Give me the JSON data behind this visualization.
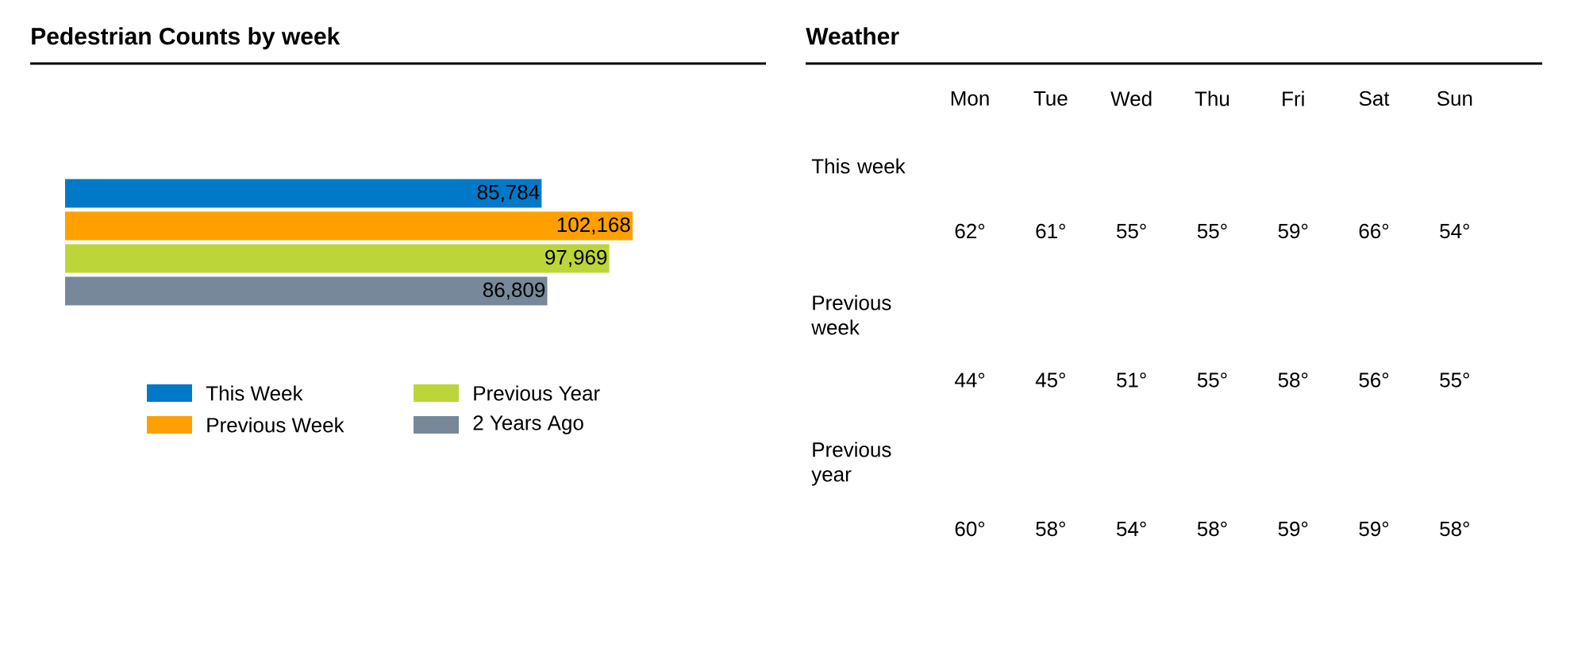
{
  "chart_data": [
    {
      "type": "bar",
      "title": "Pedestrian Counts by week",
      "orientation": "horizontal",
      "categories": [
        null
      ],
      "legend": "bottom",
      "series": [
        {
          "name": "This Week",
          "color": "#0079c8",
          "values": [
            85784
          ],
          "value_labels": [
            "85,784"
          ]
        },
        {
          "name": "Previous Week",
          "color": "#ffa000",
          "values": [
            102168
          ],
          "value_labels": [
            "102,168"
          ]
        },
        {
          "name": "Previous Year",
          "color": "#bcd63a",
          "values": [
            97969
          ],
          "value_labels": [
            "97,969"
          ]
        },
        {
          "name": "2 Years Ago",
          "color": "#768899",
          "values": [
            86809
          ],
          "value_labels": [
            "86,809"
          ]
        }
      ]
    },
    {
      "type": "other",
      "title": "Weather",
      "categories": [
        "Mon",
        "Tue",
        "Wed",
        "Thu",
        "Fri",
        "Sat",
        "Sun"
      ],
      "y_categories": [
        "This week",
        "Previous week",
        "Previous year"
      ],
      "cell_labels": [
        [
          "62°",
          "61°",
          "55°",
          "55°",
          "59°",
          "66°",
          "54°"
        ],
        [
          "44°",
          "45°",
          "51°",
          "55°",
          "58°",
          "56°",
          "55°"
        ],
        [
          "60°",
          "58°",
          "54°",
          "58°",
          "59°",
          "59°",
          "58°"
        ]
      ]
    }
  ]
}
